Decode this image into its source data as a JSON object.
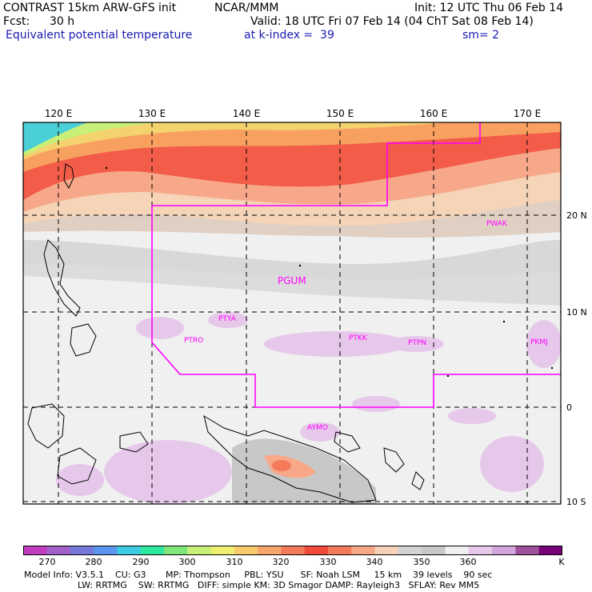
{
  "header": {
    "model": "CONTRAST 15km ARW-GFS init",
    "org": "NCAR/MMM",
    "init": "Init: 12 UTC Thu 06 Feb 14",
    "fcst_label": "Fcst:",
    "fcst_value": "30 h",
    "valid": "Valid: 18 UTC Fri 07 Feb 14 (04 ChT Sat 08 Feb 14)",
    "field": "Equivalent potential temperature",
    "kindex": "at k-index =  39",
    "sm": "sm= 2"
  },
  "map": {
    "lon_labels": [
      "120 E",
      "130 E",
      "140 E",
      "150 E",
      "160 E",
      "170 E"
    ],
    "lat_labels": [
      "20 N",
      "10 N",
      "0",
      "10 S"
    ],
    "stations": [
      {
        "id": "PWAK",
        "size": "small"
      },
      {
        "id": "PGUM",
        "size": "large"
      },
      {
        "id": "PTYA",
        "size": "small"
      },
      {
        "id": "PTRO",
        "size": "small"
      },
      {
        "id": "PTKK",
        "size": "small"
      },
      {
        "id": "PTPN",
        "size": "small"
      },
      {
        "id": "PKMJ",
        "size": "small"
      },
      {
        "id": "AYMO",
        "size": "small"
      }
    ],
    "domain_color": "#ff00ff"
  },
  "colorbar": {
    "labels": [
      "270",
      "280",
      "290",
      "300",
      "310",
      "320",
      "330",
      "340",
      "350",
      "360"
    ],
    "unit": "K",
    "colors": [
      "#c23cbe",
      "#a060c8",
      "#7878dc",
      "#5a96ee",
      "#3ccbe0",
      "#2ee8a0",
      "#7ee87a",
      "#c8f078",
      "#f0f070",
      "#f8cc6e",
      "#f8a66a",
      "#f47a5a",
      "#f04a3a",
      "#f47a5a",
      "#f8a886",
      "#f5d2b8",
      "#d2d2d2",
      "#c8c8c8",
      "#f0f0f0",
      "#e8c8e8",
      "#d2a6dc",
      "#a0509a",
      "#780078"
    ]
  },
  "info": {
    "line1": "Model Info: V3.5.1    CU: G3       MP: Thompson     PBL: YSU      SF: Noah LSM     15 km    39 levels    90 sec",
    "line2": "LW: RRTMG    SW: RRTMG   DIFF: simple KM: 3D Smagor DAMP: Rayleigh3   SFLAY: Rev MM5"
  }
}
